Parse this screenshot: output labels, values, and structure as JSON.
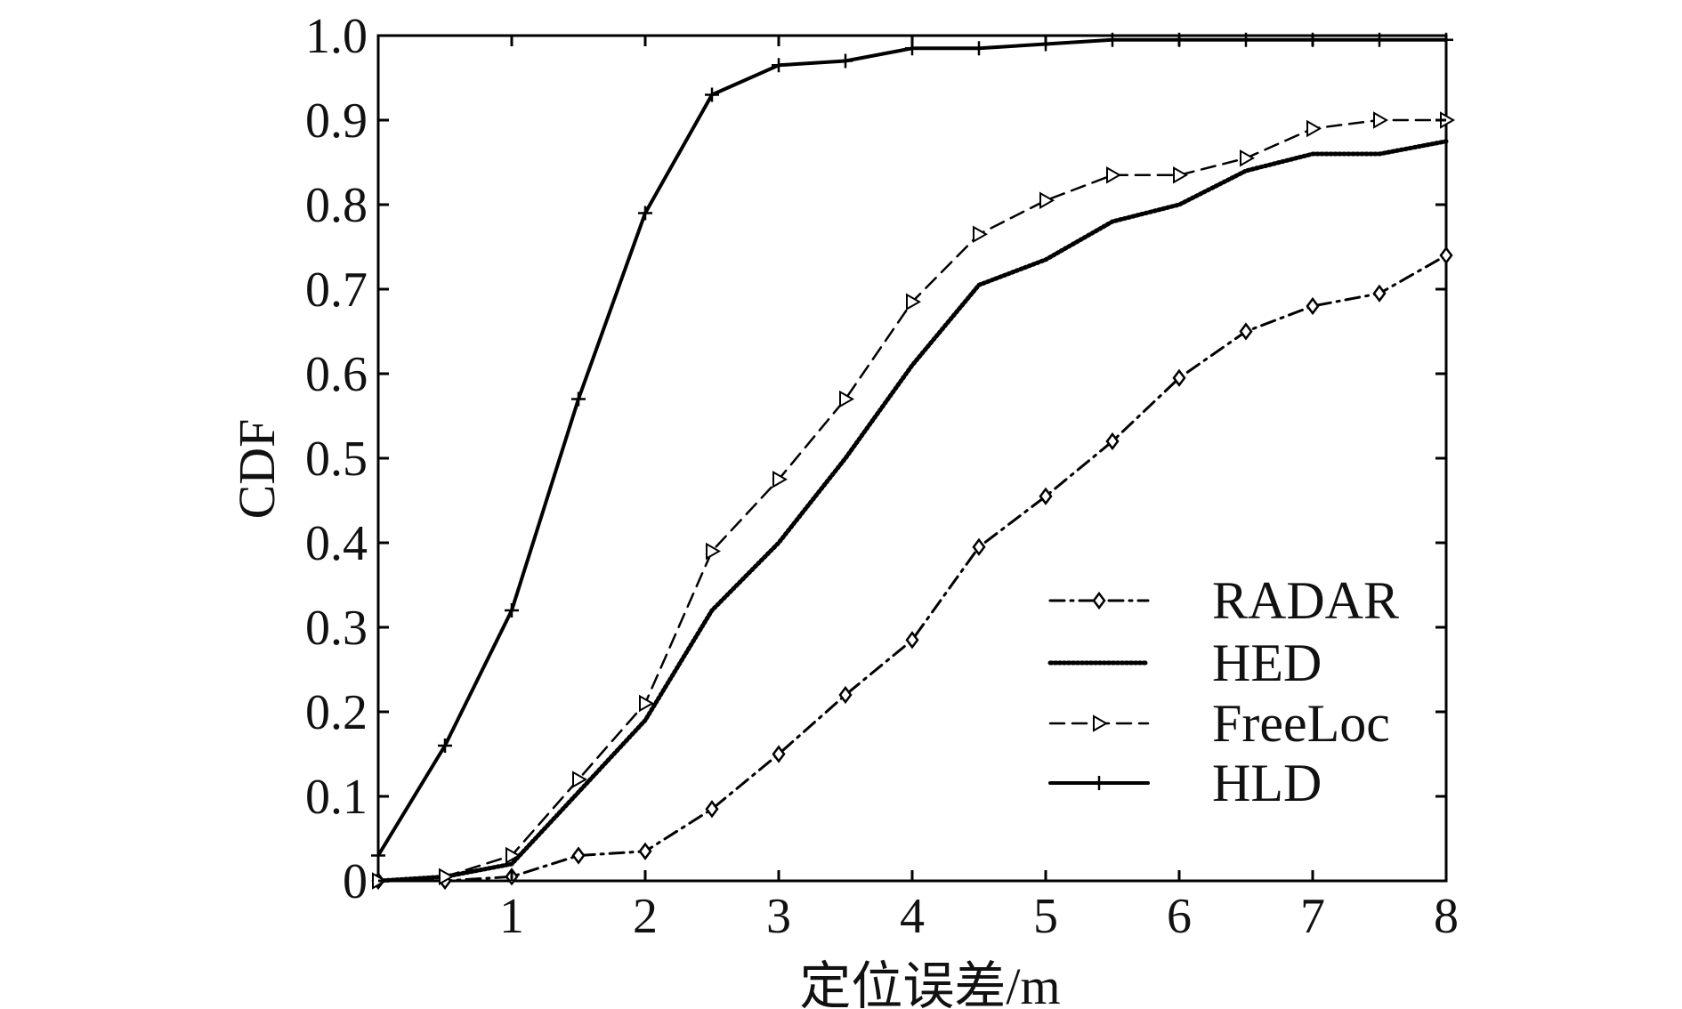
{
  "chart_data": {
    "type": "line",
    "title": "",
    "xlabel": "定位误差/m",
    "ylabel": "CDF",
    "xlim": [
      0,
      8
    ],
    "ylim": [
      0,
      1.0
    ],
    "xticks": [
      1,
      2,
      3,
      4,
      5,
      6,
      7,
      8
    ],
    "xtick_labels": [
      "1",
      "2",
      "3",
      "4",
      "5",
      "6",
      "7",
      "8"
    ],
    "yticks": [
      0,
      0.1,
      0.2,
      0.3,
      0.4,
      0.5,
      0.6,
      0.7,
      0.8,
      0.9,
      1.0
    ],
    "ytick_labels": [
      "0",
      "0.1",
      "0.2",
      "0.3",
      "0.4",
      "0.5",
      "0.6",
      "0.7",
      "0.8",
      "0.9",
      "1.0"
    ],
    "grid": false,
    "legend_position": "lower-right",
    "x": [
      0,
      0.5,
      1,
      1.5,
      2,
      2.5,
      3,
      3.5,
      4,
      4.5,
      5,
      5.5,
      6,
      6.5,
      7,
      7.5,
      8
    ],
    "series": [
      {
        "name": "RADAR",
        "style": "dash-dot",
        "marker": "diamond",
        "color": "#000000",
        "values": [
          0,
          0,
          0.005,
          0.03,
          0.035,
          0.085,
          0.15,
          0.22,
          0.285,
          0.395,
          0.455,
          0.52,
          0.595,
          0.65,
          0.68,
          0.695,
          0.74
        ]
      },
      {
        "name": "HED",
        "style": "dotted",
        "marker": "none",
        "color": "#000000",
        "values": [
          0,
          0.005,
          0.02,
          0.105,
          0.19,
          0.32,
          0.4,
          0.5,
          0.61,
          0.705,
          0.735,
          0.78,
          0.8,
          0.84,
          0.86,
          0.86,
          0.875
        ]
      },
      {
        "name": "FreeLoc",
        "style": "dashed",
        "marker": "triangle-right",
        "color": "#000000",
        "values": [
          0,
          0.005,
          0.03,
          0.12,
          0.21,
          0.39,
          0.475,
          0.57,
          0.685,
          0.765,
          0.805,
          0.835,
          0.835,
          0.855,
          0.89,
          0.9,
          0.9
        ]
      },
      {
        "name": "HLD",
        "style": "solid",
        "marker": "plus",
        "color": "#000000",
        "values": [
          0.03,
          0.16,
          0.32,
          0.57,
          0.79,
          0.93,
          0.965,
          0.97,
          0.985,
          0.985,
          0.99,
          0.995,
          0.995,
          0.995,
          0.995,
          0.995,
          0.995
        ]
      }
    ]
  }
}
